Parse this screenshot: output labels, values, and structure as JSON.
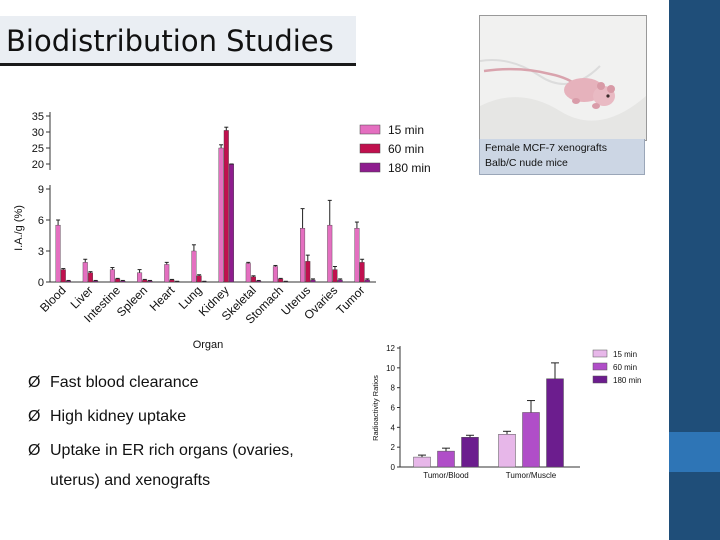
{
  "slide": {
    "title": "Biodistribution Studies",
    "photo_caption": [
      "Female MCF-7 xenografts",
      "Balb/C nude mice"
    ],
    "bullets": [
      "Fast blood clearance",
      "High kidney uptake",
      "Uptake in ER rich organs (ovaries,"
    ],
    "bullet_continuation": "uterus) and xenografts",
    "bullet_marker": "Ø",
    "colors": {
      "band": "#1f4e79",
      "band_accent": "#2e75b6",
      "title_bg": "#eaeef3"
    }
  },
  "chart_data": [
    {
      "type": "bar",
      "categories": [
        "Blood",
        "Liver",
        "Intestine",
        "Spleen",
        "Heart",
        "Lung",
        "Kidney",
        "Skeletal",
        "Stomach",
        "Uterus",
        "Ovaries",
        "Tumor"
      ],
      "series": [
        {
          "name": "15 min",
          "color": "#e46fc0",
          "values": [
            5.5,
            1.9,
            1.2,
            0.9,
            1.7,
            3.0,
            25.0,
            1.8,
            1.5,
            5.2,
            5.5,
            5.2
          ],
          "errors": [
            0.5,
            0.3,
            0.2,
            0.3,
            0.2,
            0.6,
            1.0,
            0.1,
            0.1,
            1.9,
            2.4,
            0.6
          ]
        },
        {
          "name": "60 min",
          "color": "#c0104e",
          "values": [
            1.2,
            0.9,
            0.3,
            0.2,
            0.2,
            0.6,
            30.5,
            0.5,
            0.3,
            2.0,
            1.2,
            1.9
          ],
          "errors": [
            0.1,
            0.1,
            0.05,
            0.05,
            0.05,
            0.1,
            1.0,
            0.1,
            0.05,
            0.6,
            0.3,
            0.3
          ]
        },
        {
          "name": "180 min",
          "color": "#8e1d8e",
          "values": [
            0.1,
            0.1,
            0.1,
            0.1,
            0.05,
            0.05,
            9.6,
            0.1,
            0.05,
            0.2,
            0.2,
            0.2
          ],
          "errors": [
            0.05,
            0.05,
            0.05,
            0.05,
            0.02,
            0.02,
            0.3,
            0.05,
            0.02,
            0.1,
            0.1,
            0.1
          ]
        }
      ],
      "y_axis_label": "I.A./g (%)",
      "x_axis_label": "Organ",
      "y_ticks_lower": [
        0,
        3,
        6,
        9
      ],
      "y_ticks_upper": [
        20,
        25,
        30,
        35
      ],
      "ylim": [
        0,
        35
      ],
      "broken_axis": true,
      "legend_position": "top-right"
    },
    {
      "type": "bar",
      "categories": [
        "Tumor/Blood",
        "Tumor/Muscle"
      ],
      "series": [
        {
          "name": "15 min",
          "color": "#e7b7e9",
          "values": [
            1.0,
            3.3
          ],
          "errors": [
            0.2,
            0.3
          ]
        },
        {
          "name": "60 min",
          "color": "#b04ec8",
          "values": [
            1.6,
            5.5
          ],
          "errors": [
            0.3,
            1.2
          ]
        },
        {
          "name": "180 min",
          "color": "#6c1d8e",
          "values": [
            3.0,
            8.9
          ],
          "errors": [
            0.2,
            1.6
          ]
        }
      ],
      "y_axis_label": "Radioactivity Ratios",
      "y_ticks": [
        0,
        2,
        4,
        6,
        8,
        10,
        12
      ],
      "ylim": [
        0,
        12
      ],
      "legend_position": "top-right"
    }
  ]
}
